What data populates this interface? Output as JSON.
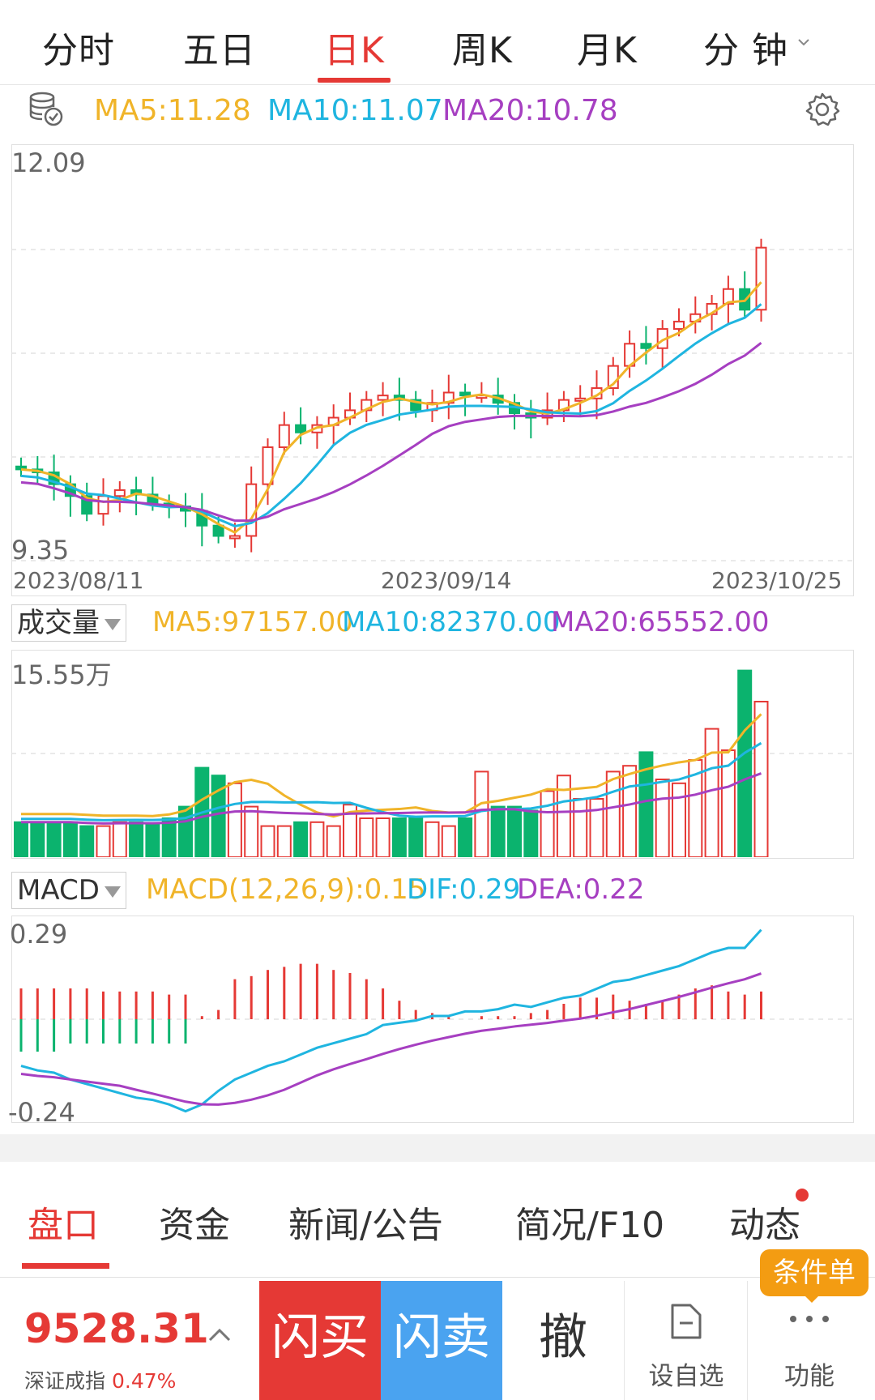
{
  "tabs": {
    "items": [
      "分时",
      "五日",
      "日K",
      "周K",
      "月K",
      "分 钟"
    ],
    "active": "日K"
  },
  "colors": {
    "ma5": "#f0b429",
    "ma10": "#1fb5e0",
    "ma20": "#a63fc1",
    "up": "#e53935",
    "down": "#0bb36e"
  },
  "kline": {
    "ma5": "MA5:11.28",
    "ma10": "MA10:11.07",
    "ma20": "MA20:10.78",
    "y_top": "12.09",
    "y_bottom": "9.35",
    "dates": [
      "2023/08/11",
      "2023/09/14",
      "2023/10/25"
    ]
  },
  "volume": {
    "selector": "成交量",
    "ma5": "MA5:97157.00",
    "ma10": "MA10:82370.00",
    "ma20": "MA20:65552.00",
    "y_top": "15.55万"
  },
  "macd": {
    "selector": "MACD",
    "macd": "MACD(12,26,9):0.15",
    "dif": "DIF:0.29",
    "dea": "DEA:0.22",
    "y_top": "0.29",
    "y_bottom": "-0.24"
  },
  "bottom_tabs": {
    "items": [
      "盘口",
      "资金",
      "新闻/公告",
      "简况/F10",
      "动态"
    ],
    "active": "盘口"
  },
  "bottom_bar": {
    "index_value": "9528.31",
    "index_name": "深证成指",
    "index_change": "0.47%",
    "buy_label": "闪买",
    "sell_label": "闪卖",
    "cancel_label": "撤",
    "favorite_label": "设自选",
    "function_label": "功能",
    "condition_label": "条件单"
  },
  "chart_data": {
    "type": "candlestick",
    "x": [
      "2023/08/11",
      "2023/09/14",
      "2023/10/25"
    ],
    "ylim": [
      9.35,
      12.09
    ],
    "volume_max": "15.55万",
    "macd_range": [
      -0.24,
      0.29
    ],
    "series": [
      {
        "name": "MA5",
        "last": 11.28
      },
      {
        "name": "MA10",
        "last": 11.07
      },
      {
        "name": "MA20",
        "last": 10.78
      }
    ]
  }
}
